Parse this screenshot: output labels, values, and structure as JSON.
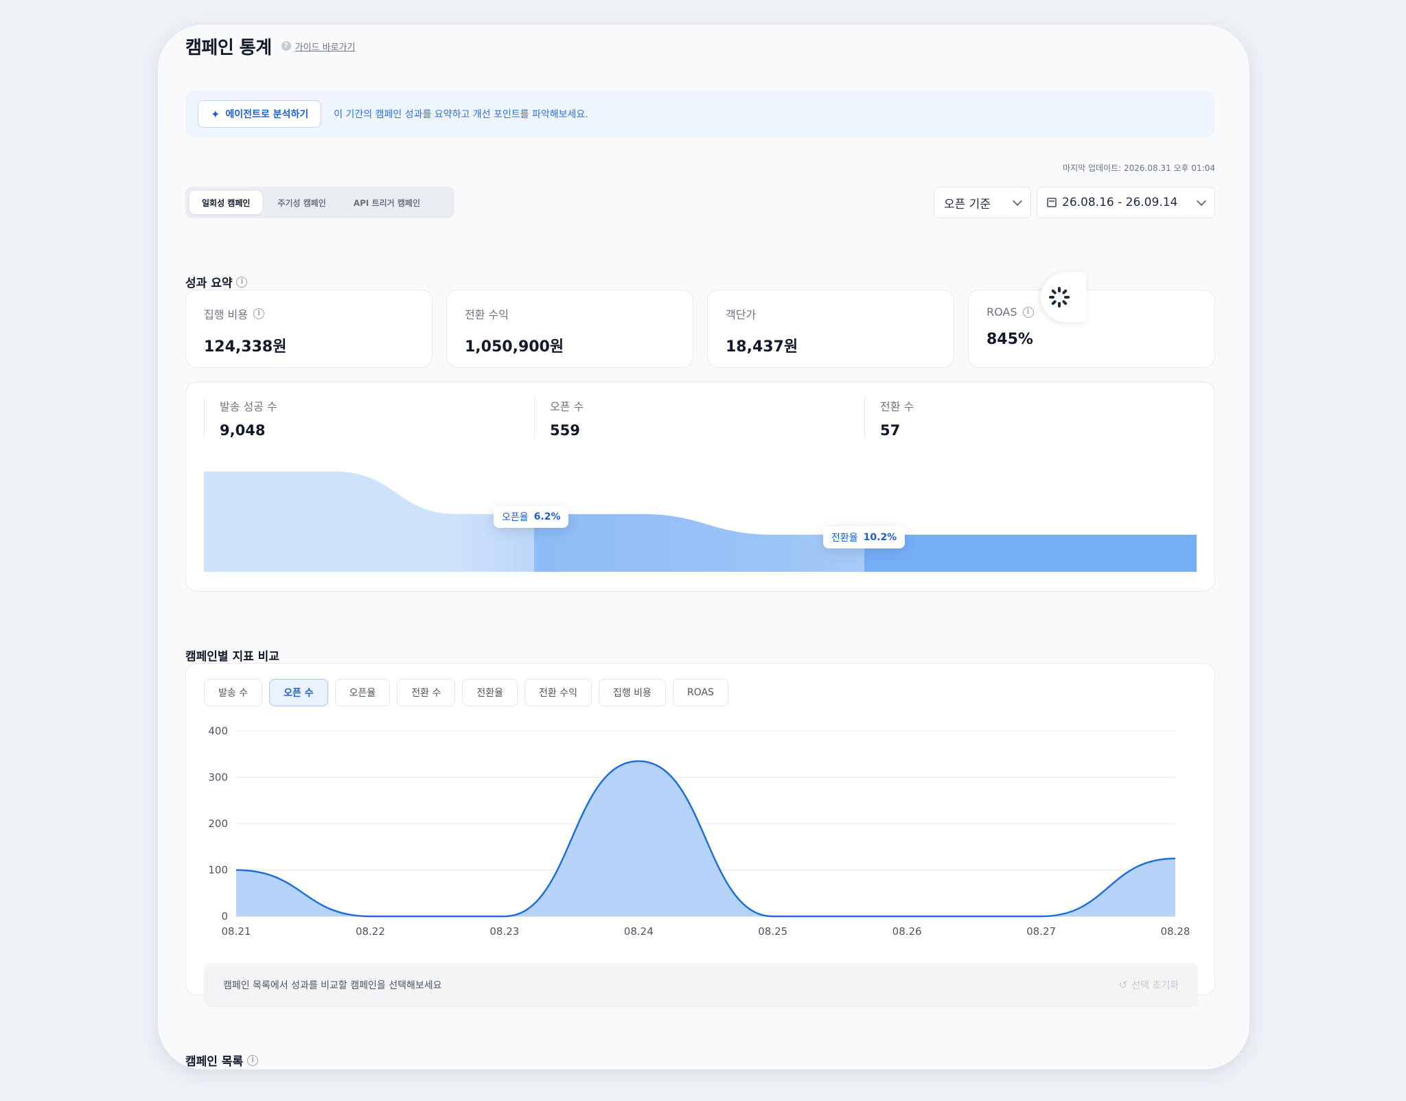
{
  "header": {
    "title": "캠페인 통계",
    "guide_link": "가이드 바로가기"
  },
  "agent_banner": {
    "button_label": "에이전트로 분석하기",
    "description": "이 기간의 캠페인 성과를 요약하고 개선 포인트를 파악해보세요."
  },
  "last_update": "마지막 업데이트: 2026.08.31 오후 01:04",
  "campaign_tabs": [
    {
      "label": "일회성 캠페인",
      "active": true
    },
    {
      "label": "주기성 캠페인",
      "active": false
    },
    {
      "label": "API 트리거 캠페인",
      "active": false
    }
  ],
  "filters": {
    "basis": "오픈 기준",
    "date_range": "26.08.16 - 26.09.14"
  },
  "summary": {
    "title": "성과 요약",
    "kpis": [
      {
        "label": "집행 비용",
        "value": "124,338원",
        "info": true
      },
      {
        "label": "전환 수익",
        "value": "1,050,900원",
        "info": false
      },
      {
        "label": "객단가",
        "value": "18,437원",
        "info": false
      },
      {
        "label": "ROAS",
        "value": "845%",
        "info": true
      }
    ],
    "funnel": [
      {
        "label": "발송 성공 수",
        "value": "9,048"
      },
      {
        "label": "오픈 수",
        "value": "559"
      },
      {
        "label": "전환 수",
        "value": "57"
      }
    ],
    "rates": [
      {
        "label": "오픈율",
        "value": "6.2%"
      },
      {
        "label": "전환율",
        "value": "10.2%"
      }
    ],
    "colors": {
      "stage1": "#cfe2fb",
      "stage2": "#9cc4f7",
      "stage3": "#76aef6"
    }
  },
  "comparison": {
    "title": "캠페인별 지표 비교",
    "metric_tabs": [
      {
        "label": "발송 수",
        "active": false
      },
      {
        "label": "오픈 수",
        "active": true
      },
      {
        "label": "오픈율",
        "active": false
      },
      {
        "label": "전환 수",
        "active": false
      },
      {
        "label": "전환율",
        "active": false
      },
      {
        "label": "전환 수익",
        "active": false
      },
      {
        "label": "집행 비용",
        "active": false
      },
      {
        "label": "ROAS",
        "active": false
      }
    ],
    "hint": "캠페인 목록에서 성과를 비교할 캠페인을 선택해보세요",
    "reset_label": "선택 초기화"
  },
  "list_section": {
    "title": "캠페인 목록"
  },
  "chart_data": {
    "type": "area",
    "categories": [
      "08.21",
      "08.22",
      "08.23",
      "08.24",
      "08.25",
      "08.26",
      "08.27",
      "08.28"
    ],
    "values": [
      100,
      0,
      0,
      335,
      0,
      0,
      0,
      125
    ],
    "yticks": [
      0,
      100,
      200,
      300,
      400
    ],
    "ylim": [
      0,
      400
    ],
    "grid": true,
    "line_color": "#1c6fdb",
    "fill_color": "#b7d3fa"
  }
}
